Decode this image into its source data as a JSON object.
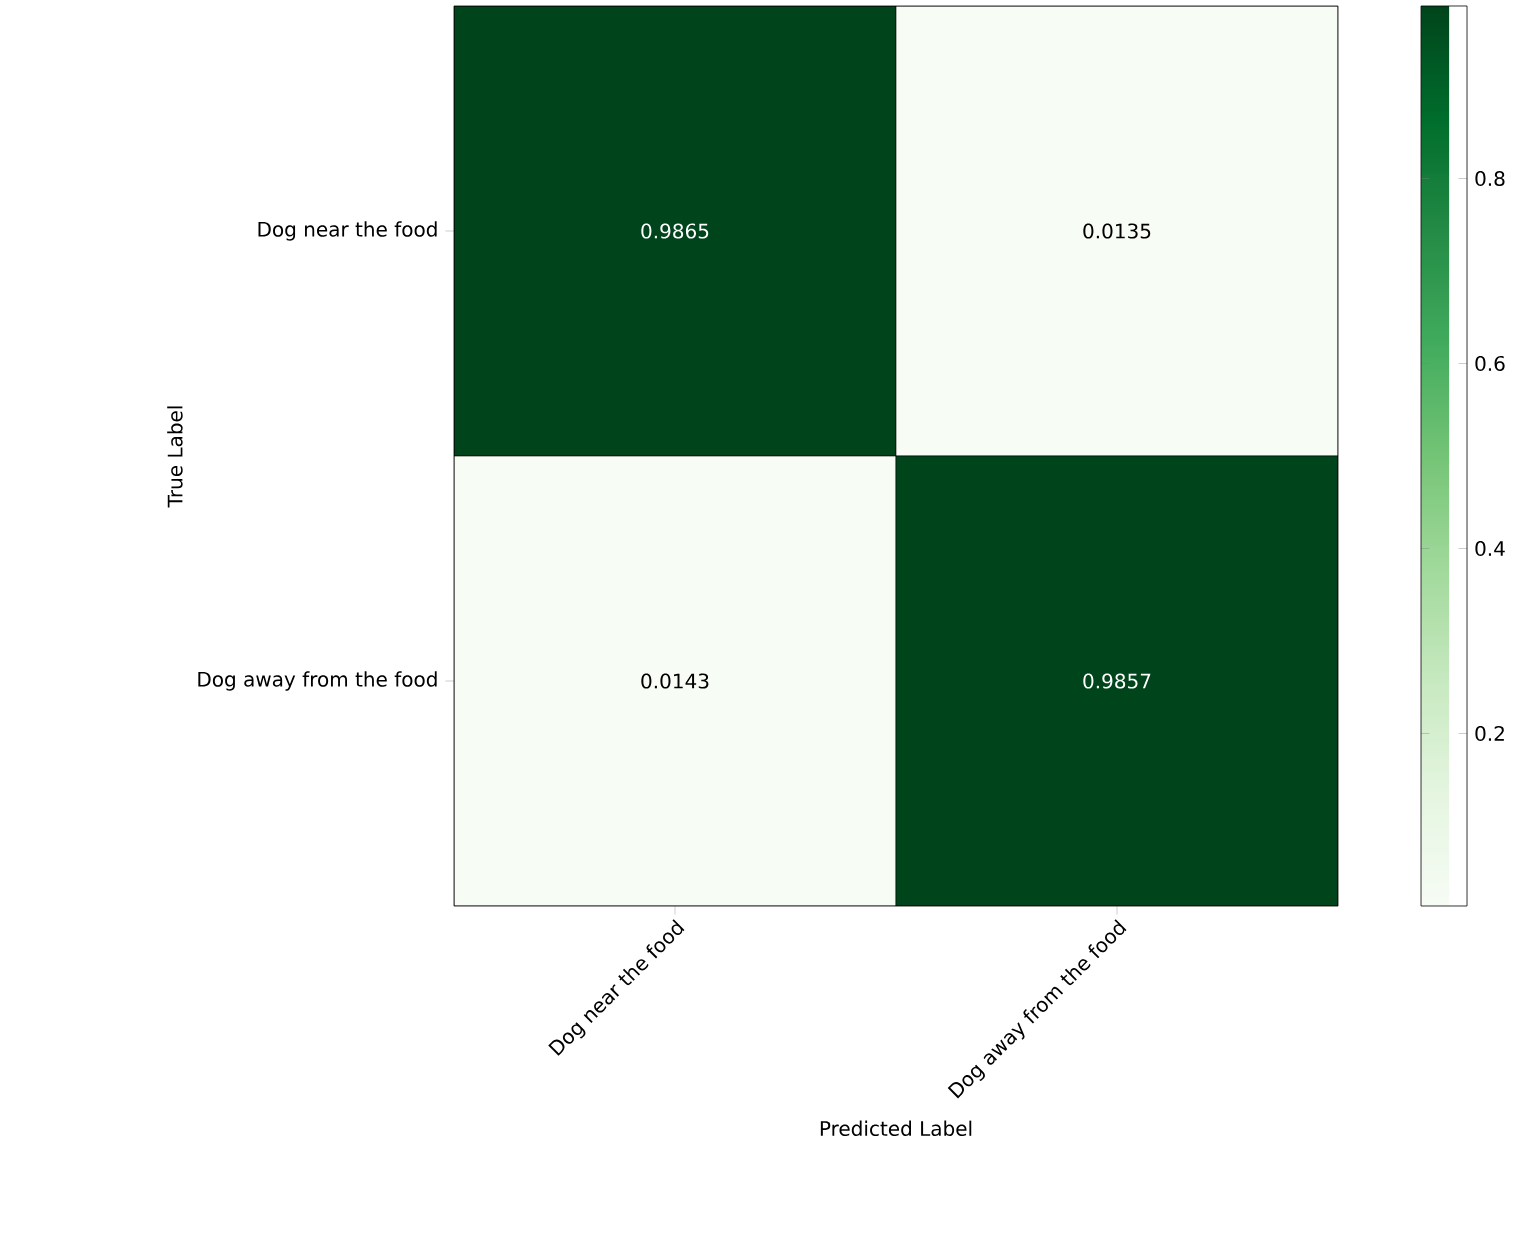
{
  "chart_data": {
    "type": "heatmap",
    "xlabel": "Predicted Label",
    "ylabel": "True Label",
    "categories": [
      "Dog near the food",
      "Dog away from the food"
    ],
    "y_categories": [
      "Dog near the food",
      "Dog away from the food"
    ],
    "cells": [
      [
        0.9865,
        0.0135
      ],
      [
        0.0143,
        0.9857
      ]
    ],
    "data_labels": true,
    "clim": [
      0.0135,
      0.9865
    ],
    "cticks": [
      0.2,
      0.4,
      0.6,
      0.8
    ]
  }
}
